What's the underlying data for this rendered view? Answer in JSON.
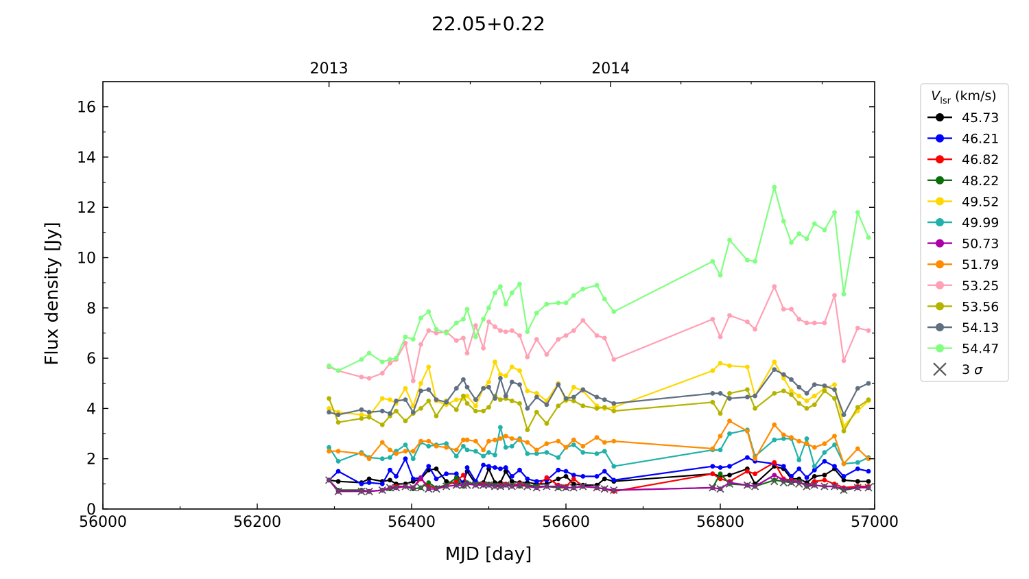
{
  "chart_data": {
    "type": "line",
    "title": "22.05+0.22",
    "xlabel": "MJD [day]",
    "ylabel": "Flux density [Jy]",
    "xlim": [
      56000,
      57000
    ],
    "ylim": [
      0,
      17
    ],
    "xticks": [
      "56000",
      "56200",
      "56400",
      "56600",
      "56800",
      "57000"
    ],
    "yticks": [
      "0",
      "2",
      "4",
      "6",
      "8",
      "10",
      "12",
      "14",
      "16"
    ],
    "top_axis_labels": [
      {
        "label": "2013",
        "mjd": 56293
      },
      {
        "label": "2014",
        "mjd": 56658
      }
    ],
    "grid": false,
    "legend_placement": "outside-right",
    "legend_title_main": "V",
    "legend_title_sub": "lsr",
    "legend_title_unit": " (km/s)",
    "x": [
      56293,
      56305,
      56335,
      56345,
      56362,
      56372,
      56380,
      56392,
      56402,
      56412,
      56422,
      56432,
      56445,
      56458,
      56467,
      56472,
      56483,
      56493,
      56500,
      56508,
      56515,
      56522,
      56530,
      56540,
      56550,
      56562,
      56575,
      56590,
      56600,
      56610,
      56622,
      56640,
      56650,
      56662,
      56790,
      56800,
      56812,
      56835,
      56845,
      56870,
      56882,
      56892,
      56902,
      56912,
      56922,
      56935,
      56948,
      56960,
      56978,
      56992
    ],
    "series": [
      {
        "name": "45.73",
        "color": "#000000",
        "values": [
          1.15,
          1.1,
          1.05,
          1.2,
          1.1,
          1.15,
          1.0,
          1.0,
          1.1,
          1.2,
          1.55,
          1.6,
          1.1,
          1.0,
          1.05,
          1.5,
          1.0,
          1.05,
          1.6,
          1.05,
          1.05,
          1.5,
          1.1,
          1.05,
          1.05,
          1.0,
          1.0,
          1.2,
          1.3,
          1.0,
          0.95,
          0.95,
          1.2,
          1.1,
          1.4,
          1.3,
          1.35,
          1.6,
          1.0,
          1.7,
          1.6,
          1.2,
          1.2,
          1.05,
          1.3,
          1.35,
          1.6,
          1.15,
          1.1,
          1.1
        ]
      },
      {
        "name": "46.21",
        "color": "#0000ff",
        "values": [
          1.15,
          1.5,
          1.0,
          1.05,
          1.0,
          1.55,
          1.3,
          2.0,
          1.2,
          1.25,
          1.7,
          1.2,
          1.4,
          1.4,
          1.0,
          1.65,
          1.1,
          1.75,
          1.7,
          1.65,
          1.6,
          1.65,
          1.3,
          1.55,
          1.2,
          1.1,
          1.15,
          1.55,
          1.5,
          1.35,
          1.3,
          1.3,
          1.5,
          1.15,
          1.7,
          1.65,
          1.7,
          2.05,
          1.9,
          1.8,
          1.7,
          1.3,
          1.6,
          1.25,
          1.55,
          1.9,
          1.7,
          1.3,
          1.6,
          1.5
        ]
      },
      {
        "name": "46.82",
        "color": "#ff0000",
        "values": [
          1.15,
          0.75,
          0.75,
          0.7,
          0.75,
          0.85,
          0.9,
          0.9,
          0.85,
          1.2,
          0.9,
          0.85,
          0.95,
          1.1,
          1.35,
          1.0,
          1.0,
          1.0,
          1.0,
          0.95,
          0.95,
          1.0,
          0.95,
          1.0,
          0.95,
          0.9,
          1.25,
          0.95,
          0.9,
          1.2,
          0.9,
          0.85,
          0.8,
          0.7,
          1.4,
          1.2,
          1.1,
          1.5,
          1.4,
          1.85,
          1.2,
          1.15,
          1.1,
          0.9,
          1.1,
          1.15,
          1.0,
          0.85,
          0.9,
          0.9
        ]
      },
      {
        "name": "48.22",
        "color": "#0b6e0b",
        "values": [
          1.15,
          0.75,
          0.75,
          0.7,
          0.75,
          0.8,
          0.85,
          0.9,
          0.8,
          0.85,
          1.05,
          0.85,
          0.95,
          1.25,
          0.9,
          1.05,
          1.0,
          0.95,
          1.0,
          0.95,
          0.9,
          0.95,
          0.95,
          0.9,
          0.95,
          0.9,
          0.9,
          0.85,
          0.85,
          0.85,
          0.9,
          0.85,
          0.8,
          0.75,
          0.85,
          1.4,
          1.0,
          0.95,
          0.9,
          1.15,
          1.1,
          1.05,
          1.1,
          0.9,
          0.95,
          0.9,
          0.9,
          0.75,
          0.85,
          0.85
        ]
      },
      {
        "name": "49.52",
        "color": "#ffd700",
        "values": [
          4.0,
          3.85,
          3.75,
          3.7,
          4.4,
          4.35,
          4.2,
          4.8,
          4.1,
          5.0,
          5.65,
          4.3,
          4.15,
          4.35,
          4.4,
          4.5,
          4.1,
          4.8,
          5.05,
          5.85,
          5.35,
          5.3,
          5.65,
          5.5,
          4.7,
          4.6,
          4.3,
          5.0,
          4.3,
          4.85,
          4.7,
          4.1,
          4.0,
          4.05,
          5.5,
          5.8,
          5.7,
          5.65,
          4.5,
          5.85,
          5.2,
          4.7,
          4.5,
          4.3,
          4.5,
          4.8,
          4.95,
          3.3,
          3.9,
          4.3
        ]
      },
      {
        "name": "49.99",
        "color": "#20b2aa",
        "values": [
          2.45,
          1.9,
          2.25,
          2.05,
          2.0,
          2.05,
          2.3,
          2.55,
          2.0,
          2.65,
          2.5,
          2.55,
          2.6,
          2.1,
          2.5,
          2.35,
          2.3,
          2.1,
          2.25,
          2.15,
          3.25,
          2.45,
          2.5,
          2.8,
          2.2,
          2.2,
          2.25,
          2.05,
          2.45,
          2.55,
          2.25,
          2.2,
          2.3,
          1.7,
          2.35,
          2.35,
          3.0,
          3.15,
          2.1,
          2.75,
          2.8,
          2.8,
          1.95,
          2.8,
          1.7,
          2.25,
          2.55,
          1.8,
          1.85,
          2.05
        ]
      },
      {
        "name": "50.73",
        "color": "#aa00aa",
        "values": [
          1.15,
          0.7,
          0.7,
          0.7,
          0.75,
          0.85,
          0.85,
          0.9,
          0.85,
          1.25,
          0.8,
          0.8,
          0.9,
          0.95,
          0.95,
          1.0,
          0.95,
          0.95,
          0.95,
          0.9,
          0.9,
          0.95,
          0.9,
          0.95,
          0.9,
          0.85,
          0.9,
          0.9,
          0.85,
          0.85,
          0.9,
          0.85,
          0.8,
          0.75,
          0.85,
          0.8,
          1.05,
          0.95,
          0.9,
          1.35,
          1.15,
          1.1,
          1.05,
          0.95,
          0.95,
          0.9,
          0.9,
          0.8,
          0.85,
          0.85
        ]
      },
      {
        "name": "51.79",
        "color": "#ff8c00",
        "values": [
          2.3,
          2.3,
          2.2,
          2.0,
          2.65,
          2.35,
          2.2,
          2.3,
          2.3,
          2.7,
          2.7,
          2.5,
          2.45,
          2.35,
          2.75,
          2.75,
          2.7,
          2.35,
          2.7,
          2.75,
          2.8,
          2.9,
          2.8,
          2.75,
          2.65,
          2.35,
          2.6,
          2.7,
          2.45,
          2.75,
          2.5,
          2.85,
          2.65,
          2.7,
          2.4,
          2.9,
          3.5,
          3.1,
          2.0,
          3.35,
          2.95,
          2.85,
          2.7,
          2.6,
          2.45,
          2.6,
          2.9,
          1.8,
          2.4,
          2.0
        ]
      },
      {
        "name": "53.25",
        "color": "#ffa0b4",
        "values": [
          5.65,
          5.5,
          5.25,
          5.2,
          5.4,
          5.8,
          5.95,
          6.6,
          5.1,
          6.55,
          7.1,
          7.0,
          7.05,
          6.7,
          6.8,
          6.2,
          7.3,
          6.4,
          7.45,
          7.25,
          7.1,
          7.05,
          7.1,
          6.9,
          6.05,
          6.75,
          6.15,
          6.75,
          6.9,
          7.1,
          7.5,
          6.9,
          6.8,
          5.95,
          7.55,
          6.85,
          7.7,
          7.45,
          7.15,
          8.85,
          7.95,
          7.95,
          7.55,
          7.4,
          7.4,
          7.4,
          8.5,
          5.9,
          7.2,
          7.1
        ]
      },
      {
        "name": "53.56",
        "color": "#b4b400",
        "values": [
          4.4,
          3.45,
          3.6,
          3.65,
          3.35,
          3.7,
          3.9,
          3.5,
          3.8,
          4.0,
          4.3,
          3.7,
          4.3,
          3.95,
          4.5,
          4.2,
          3.9,
          3.9,
          4.05,
          4.5,
          4.35,
          4.4,
          4.3,
          4.2,
          3.15,
          3.85,
          3.4,
          4.1,
          4.35,
          4.3,
          4.1,
          4.0,
          4.05,
          3.9,
          4.25,
          3.8,
          4.6,
          4.75,
          4.0,
          4.6,
          4.7,
          4.55,
          4.2,
          4.0,
          4.15,
          4.7,
          4.4,
          3.1,
          4.05,
          4.35
        ]
      },
      {
        "name": "54.13",
        "color": "#607080",
        "values": [
          3.85,
          3.75,
          3.95,
          3.85,
          3.9,
          3.8,
          4.3,
          4.35,
          3.85,
          4.7,
          4.75,
          4.35,
          4.25,
          4.8,
          5.15,
          4.85,
          4.35,
          4.8,
          4.85,
          4.4,
          5.2,
          4.5,
          5.05,
          4.95,
          4.0,
          4.45,
          4.15,
          4.95,
          4.4,
          4.45,
          4.75,
          4.45,
          4.35,
          4.2,
          4.6,
          4.6,
          4.4,
          4.45,
          4.5,
          5.55,
          5.35,
          5.15,
          4.85,
          4.6,
          4.95,
          4.9,
          4.75,
          3.75,
          4.8,
          5.0
        ]
      },
      {
        "name": "54.47",
        "color": "#80ff80",
        "values": [
          5.7,
          5.5,
          5.95,
          6.2,
          5.85,
          5.95,
          6.0,
          6.85,
          6.75,
          7.6,
          7.85,
          7.15,
          7.0,
          7.4,
          7.55,
          7.95,
          6.85,
          7.55,
          8.0,
          8.6,
          8.85,
          8.15,
          8.6,
          8.95,
          7.05,
          7.8,
          8.15,
          8.2,
          8.2,
          8.5,
          8.75,
          8.9,
          8.35,
          7.85,
          9.85,
          9.3,
          10.7,
          9.9,
          9.85,
          12.8,
          11.45,
          10.6,
          10.95,
          10.75,
          11.35,
          11.1,
          11.8,
          8.55,
          11.8,
          10.8
        ]
      }
    ],
    "sigma3_label": "3",
    "sigma3_symbol": "σ",
    "sigma3_color": "#555555",
    "sigma3_values": [
      1.15,
      0.7,
      0.7,
      0.7,
      0.75,
      0.85,
      0.85,
      0.9,
      0.85,
      0.85,
      0.8,
      0.8,
      0.9,
      0.95,
      0.95,
      0.95,
      0.95,
      0.95,
      0.95,
      0.9,
      0.9,
      0.95,
      0.9,
      0.95,
      0.9,
      0.85,
      0.9,
      0.85,
      0.85,
      0.85,
      0.9,
      0.85,
      0.8,
      0.75,
      0.85,
      0.8,
      1.0,
      0.95,
      0.9,
      1.1,
      1.05,
      1.05,
      1.0,
      0.9,
      0.95,
      0.9,
      0.9,
      0.75,
      0.85,
      0.85
    ]
  }
}
